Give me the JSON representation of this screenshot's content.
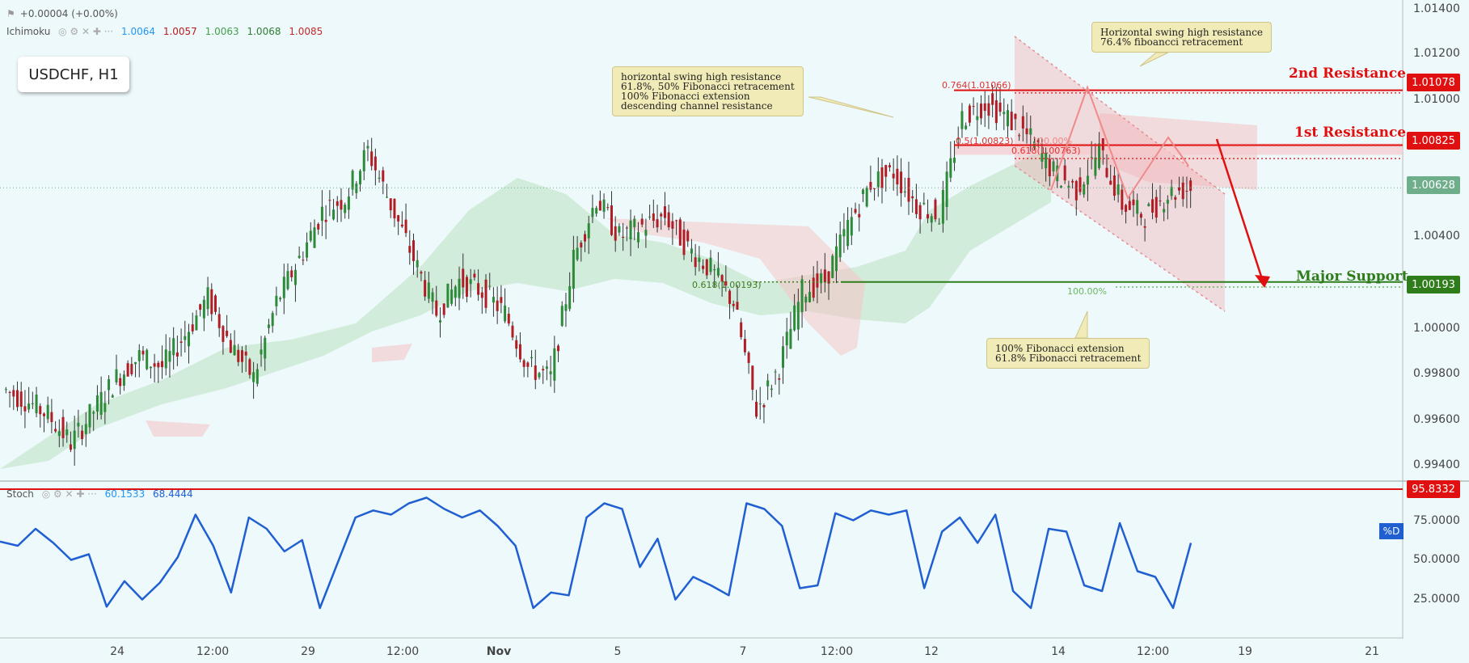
{
  "header": {
    "change": "+0.00004 (+0.00%)",
    "indicator_name": "Ichimoku",
    "ichimoku_values": [
      {
        "value": "1.0064",
        "color": "#2196f3"
      },
      {
        "value": "1.0057",
        "color": "#b71c1c"
      },
      {
        "value": "1.0063",
        "color": "#43a047"
      },
      {
        "value": "1.0068",
        "color": "#2e7d32"
      },
      {
        "value": "1.0085",
        "color": "#c62828"
      }
    ]
  },
  "symbol": "USDCHF, H1",
  "notes": [
    "horizontal swing high resistance\n61.8%, 50% Fibonacci retracement\n100% Fibonacci extension\ndescending channel resistance",
    "Horizontal swing high resistance\n76.4% fiboancci retracement",
    "100% Fibonacci extension\n61.8% Fibonacci retracement"
  ],
  "levels": {
    "second_resistance": {
      "label": "2nd Resistance",
      "price": "1.01078",
      "value": 1.01078,
      "color": "#e01010"
    },
    "first_resistance": {
      "label": "1st Resistance",
      "price": "1.00825",
      "value": 1.00825,
      "color": "#e01010"
    },
    "current_price": {
      "price": "1.00628",
      "value": 1.00628,
      "color": "#6fae8b"
    },
    "major_support": {
      "label": "Major Support",
      "price": "1.00193",
      "value": 1.00193,
      "color": "#2f7d1a"
    }
  },
  "fib_labels": {
    "f764": "0.764(1.01066)",
    "f5": "0.5(1.00823)",
    "f618a": "0.618(1.00763)",
    "f100a": "100.00%",
    "f618b": "0.618(1.00193)",
    "f100b": "100.00%"
  },
  "price_axis": [
    "1.01400",
    "1.01200",
    "1.01000",
    "1.00400",
    "1.00000",
    "0.99800",
    "0.99600",
    "0.99400"
  ],
  "time_axis": [
    "24",
    "12:00",
    "29",
    "12:00",
    "Nov",
    "5",
    "7",
    "12:00",
    "12",
    "14",
    "12:00",
    "19",
    "21"
  ],
  "stoch": {
    "name": "Stoch",
    "k": "60.1533",
    "d": "68.4444",
    "level_price": "95.8332",
    "axis": [
      "75.0000",
      "50.0000",
      "25.0000"
    ],
    "series_label": "%D"
  },
  "chart_data": {
    "type": "line",
    "title": "USDCHF, H1",
    "series": [
      {
        "name": "%D",
        "values": [
          63,
          60,
          72,
          62,
          50,
          54,
          17,
          35,
          22,
          34,
          52,
          82,
          60,
          27,
          80,
          72,
          56,
          64,
          16,
          48,
          80,
          85,
          82,
          90,
          94,
          86,
          80,
          85,
          74,
          60,
          16,
          27,
          25,
          80,
          90,
          86,
          45,
          65,
          22,
          38,
          32,
          25,
          90,
          86,
          74,
          30,
          32,
          83,
          78,
          85,
          82,
          85,
          30,
          70,
          80,
          62,
          82,
          28,
          16,
          72,
          70,
          32,
          28,
          76,
          42,
          38,
          16,
          62
        ]
      },
      {
        "name": "Price",
        "values": [
          0.997,
          0.9965,
          0.9958,
          0.9945,
          0.996,
          0.9975,
          0.9985,
          0.998,
          0.9995,
          1.0012,
          0.999,
          0.9975,
          1.001,
          1.003,
          1.0052,
          1.0058,
          1.008,
          1.0055,
          1.003,
          1.0005,
          1.002,
          1.0015,
          1.0005,
          0.998,
          0.9975,
          1.003,
          1.0058,
          1.004,
          1.0045,
          1.005,
          1.0035,
          1.0025,
          1.001,
          0.996,
          0.998,
          1.0015,
          1.002,
          1.0045,
          1.0065,
          1.007,
          1.0055,
          1.005,
          1.0095,
          1.0102,
          1.0095,
          1.0085,
          1.007,
          1.0062,
          1.008,
          1.0055,
          1.005,
          1.006,
          1.0063
        ]
      }
    ],
    "ylim": [
      0.9933,
      1.0145
    ]
  }
}
